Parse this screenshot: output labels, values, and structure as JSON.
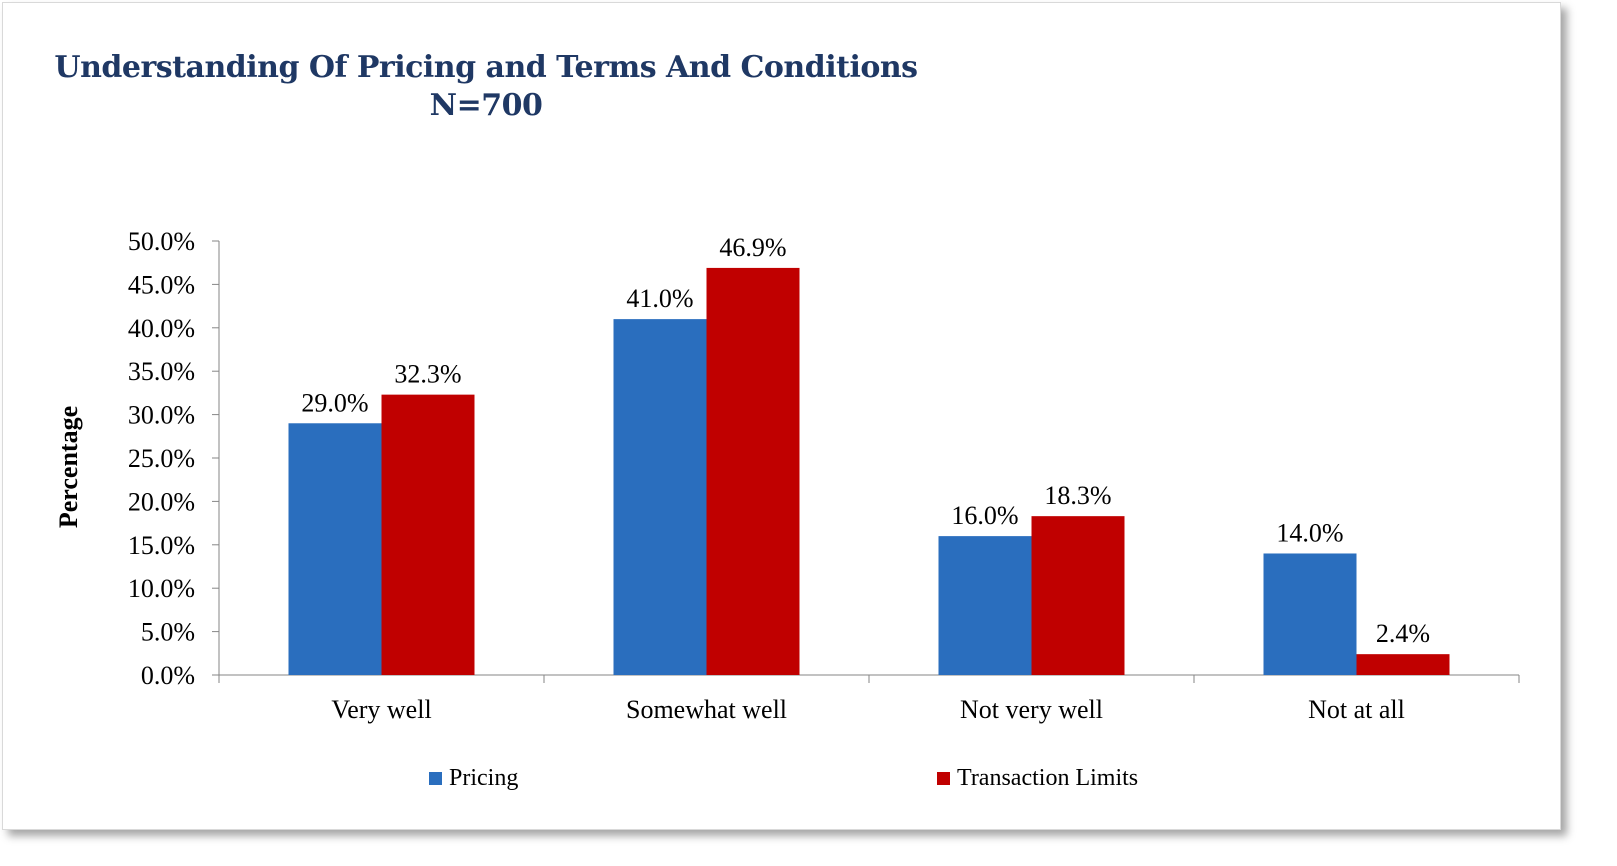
{
  "chart_data": {
    "type": "bar",
    "title": "Understanding Of Pricing and Terms And Conditions",
    "subtitle": "N=700",
    "ylabel": "Percentage",
    "xlabel": "",
    "categories": [
      "Very well",
      "Somewhat well",
      "Not very well",
      "Not at all"
    ],
    "series": [
      {
        "name": "Pricing",
        "color": "#2a6ebe",
        "values": [
          29.0,
          41.0,
          16.0,
          14.0
        ],
        "labels": [
          "29.0%",
          "41.0%",
          "16.0%",
          "14.0%"
        ]
      },
      {
        "name": "Transaction Limits",
        "color": "#c00000",
        "values": [
          32.3,
          46.9,
          18.3,
          2.4
        ],
        "labels": [
          "32.3%",
          "46.9%",
          "18.3%",
          "2.4%"
        ]
      }
    ],
    "ylim": [
      0,
      50
    ],
    "yticks": [
      0,
      5,
      10,
      15,
      20,
      25,
      30,
      35,
      40,
      45,
      50
    ],
    "ytick_labels": [
      "0.0%",
      "5.0%",
      "10.0%",
      "15.0%",
      "20.0%",
      "25.0%",
      "30.0%",
      "35.0%",
      "40.0%",
      "45.0%",
      "50.0%"
    ],
    "grid": false,
    "legend_position": "bottom"
  }
}
